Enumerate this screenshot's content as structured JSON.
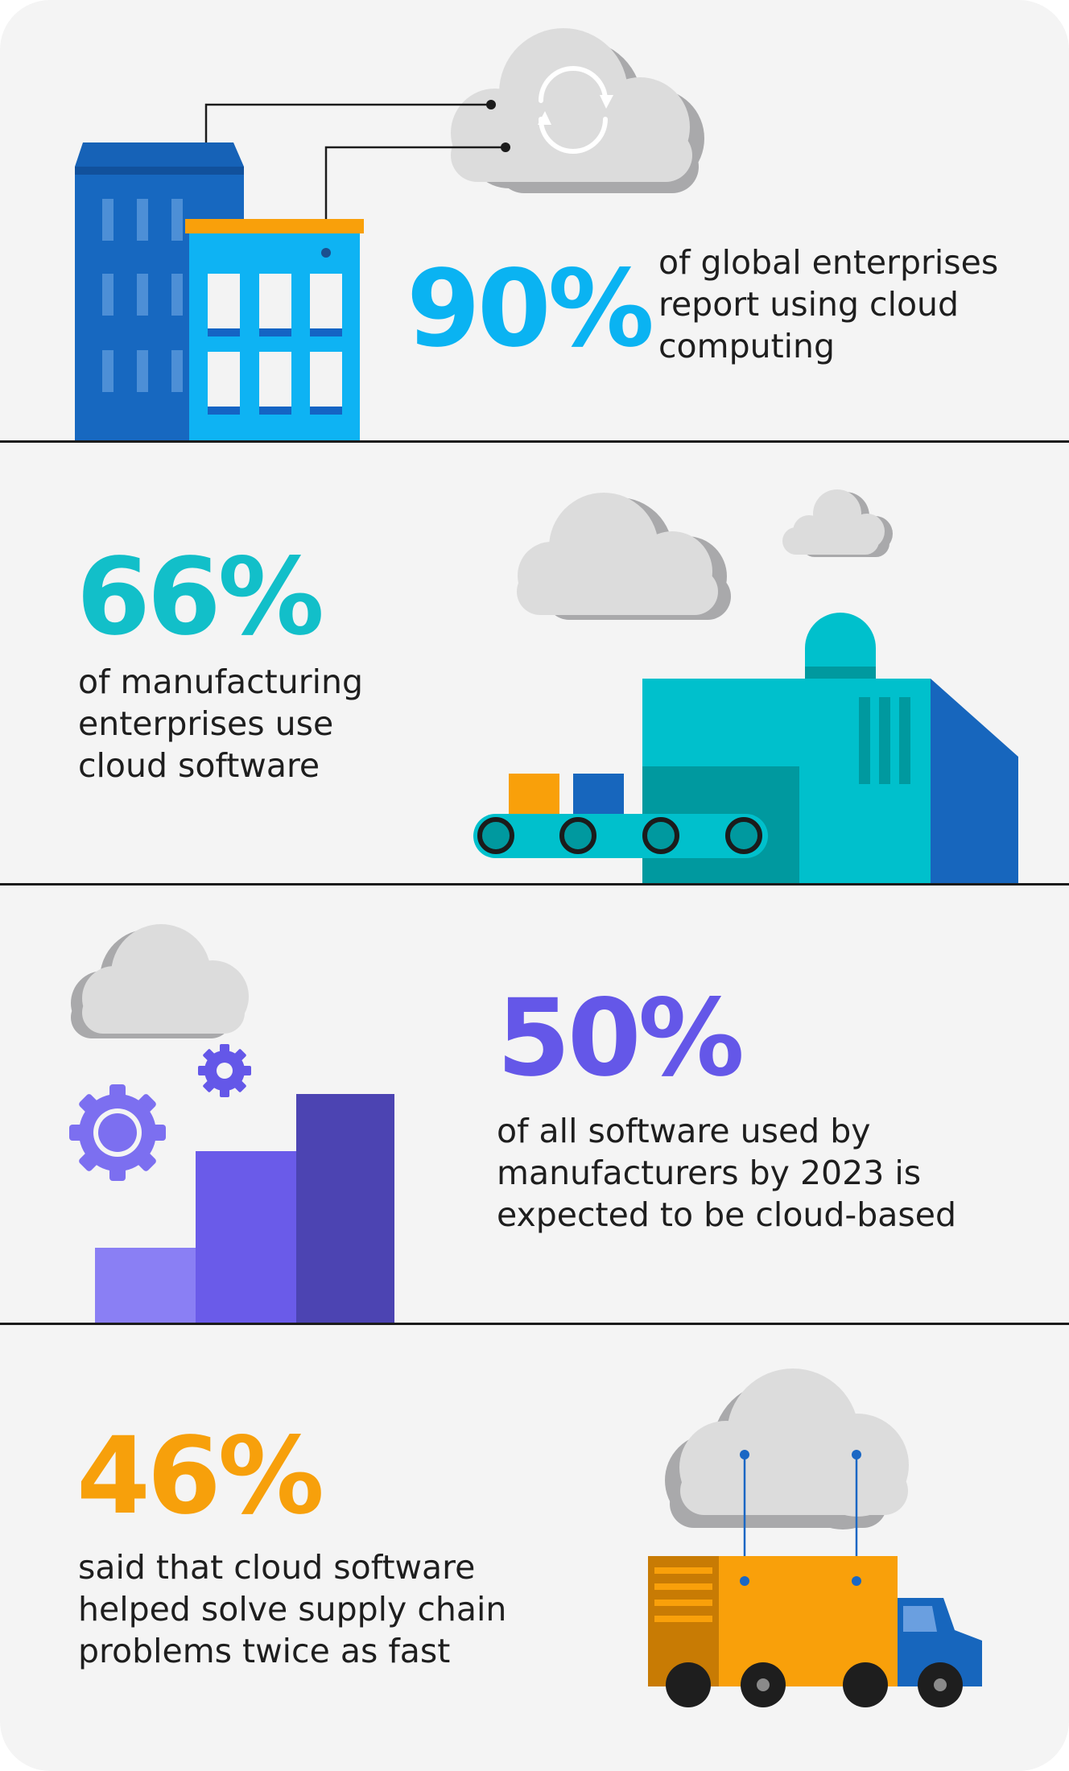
{
  "colors": {
    "background": "#f4f4f4",
    "divider": "#1b1b1b",
    "stat1": "#0ab3f2",
    "stat2": "#12bfc9",
    "stat3": "#6457e8",
    "stat4": "#f7a00b",
    "text": "#1e1e1e"
  },
  "stats": [
    {
      "value": "90%",
      "text": "of global enterprises\nreport using cloud\ncomputing",
      "icons": [
        "office-buildings-icon",
        "cloud-sync-icon"
      ]
    },
    {
      "value": "66%",
      "text": "of manufacturing\nenterprises use\ncloud software",
      "icons": [
        "factory-conveyor-icon",
        "cloud-icon"
      ]
    },
    {
      "value": "50%",
      "text": "of all software used by\nmanufacturers by 2023 is\nexpected to be cloud-based",
      "icons": [
        "bar-growth-icon",
        "gear-icon",
        "cloud-icon"
      ]
    },
    {
      "value": "46%",
      "text": "said that cloud software\nhelped solve supply chain\nproblems twice as fast",
      "icons": [
        "delivery-truck-icon",
        "cloud-icon"
      ]
    }
  ]
}
